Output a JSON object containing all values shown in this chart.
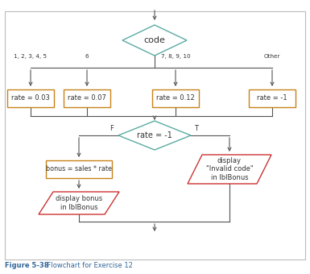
{
  "title_bold": "Figure 5-38",
  "title_rest": "    Flowchart for Exercise 12",
  "diamond1_text": "code",
  "diamond2_text": "rate = -1",
  "box_labels": [
    "rate = 0.03",
    "rate = 0.07",
    "rate = 0.12",
    "rate = -1"
  ],
  "branch_labels": [
    "1, 2, 3, 4, 5",
    "6",
    "7, 8, 9, 10",
    "Other"
  ],
  "bonus_box_text": "bonus = sales * rate",
  "par1_text": "display bonus\nin lblBonus",
  "par2_text": "display\n\"Invalid code\"\nin lblBonus",
  "F_label": "F",
  "T_label": "T",
  "teal": "#5aaba3",
  "orange": "#c8821a",
  "red": "#cc3333",
  "dark": "#333333",
  "line_color": "#555555",
  "bg": "#ffffff",
  "border_color": "#cccccc",
  "caption_color": "#336699"
}
